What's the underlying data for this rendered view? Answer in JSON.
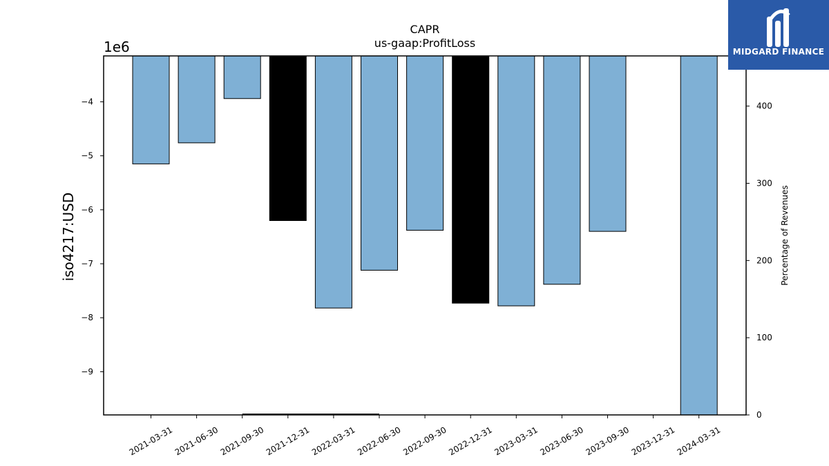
{
  "chart_data": {
    "type": "bar",
    "title": "CAPR",
    "subtitle": "us-gaap:ProfitLoss",
    "ylabel": "iso4217:USD",
    "y_offset_label": "1e6",
    "y2label": "Percentage of Revenues",
    "categories": [
      "2021-03-31",
      "2021-06-30",
      "2021-09-30",
      "2021-12-31",
      "2022-03-31",
      "2022-06-30",
      "2022-09-30",
      "2022-12-31",
      "2023-03-31",
      "2023-06-30",
      "2023-09-30",
      "2023-12-31",
      "2024-03-31"
    ],
    "values": [
      -5.15,
      -4.76,
      -3.94,
      -6.2,
      -7.82,
      -7.12,
      -6.38,
      -7.73,
      -7.78,
      -7.38,
      -6.4,
      null,
      -9.8
    ],
    "bar_colors": [
      "#7fb0d5",
      "#7fb0d5",
      "#7fb0d5",
      "#000000",
      "#7fb0d5",
      "#7fb0d5",
      "#7fb0d5",
      "#000000",
      "#7fb0d5",
      "#7fb0d5",
      "#7fb0d5",
      "#7fb0d5",
      "#7fb0d5"
    ],
    "ylim": [
      -9.8,
      -3.15
    ],
    "yticks": [
      -4,
      -5,
      -6,
      -7,
      -8,
      -9
    ],
    "ytick_labels": [
      "−4",
      "−5",
      "−6",
      "−7",
      "−8",
      "−9"
    ],
    "y2lim": [
      0,
      465
    ],
    "y2ticks": [
      0,
      100,
      200,
      300,
      400
    ],
    "y2tick_labels": [
      "0",
      "100",
      "200",
      "300",
      "400"
    ],
    "secondary_line": {
      "x_start": "2021-09-30",
      "x_end": "2022-06-30",
      "value": 1
    }
  },
  "logo": {
    "text": "MIDGARD FINANCE"
  }
}
